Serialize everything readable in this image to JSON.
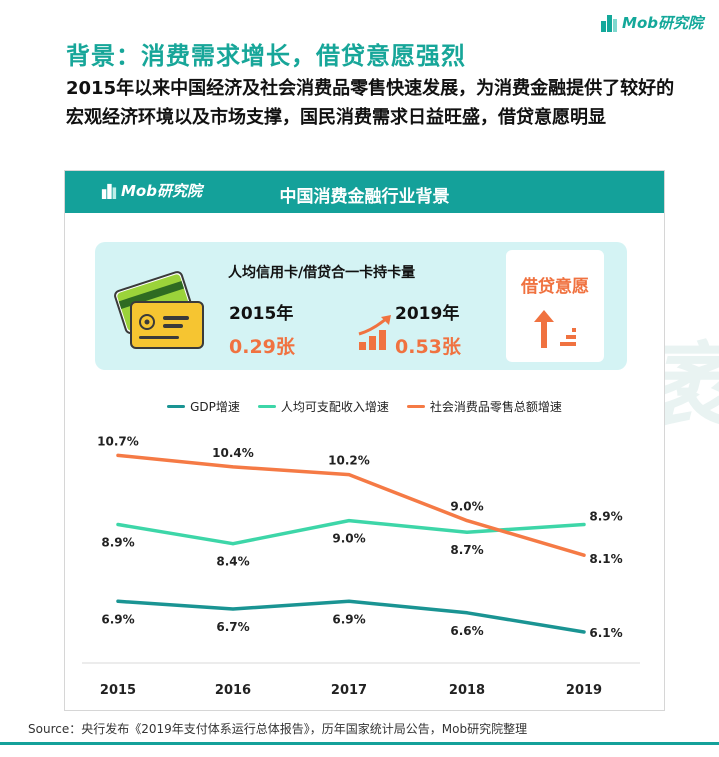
{
  "brand": {
    "name": "Mob研究院",
    "color": "#14a19a"
  },
  "page": {
    "title": "背景：消费需求增长，借贷意愿强烈",
    "subtitle": "2015年以来中国经济及社会消费品零售快速发展，为消费金融提供了较好的宏观经济环境以及市场支撑，国民消费需求日益旺盛，借贷意愿明显"
  },
  "card": {
    "header_logo": "Mob研究院",
    "header_title": "中国消费金融行业背景"
  },
  "card_stat": {
    "label": "人均信用卡/借贷合一卡持卡量",
    "year_a": "2015年",
    "value_a": "0.29张",
    "year_b": "2019年",
    "value_b": "0.53张",
    "side_label": "借贷意愿",
    "icons": [
      "credit-card-icon",
      "growth-icon",
      "arrow-up-icon"
    ]
  },
  "watermark": "Mobtech 袤博",
  "source": "Source：央行发布《2019年支付体系运行总体报告》，历年国家统计局公告，Mob研究院整理",
  "chart_data": {
    "type": "line",
    "categories": [
      "2015",
      "2016",
      "2017",
      "2018",
      "2019"
    ],
    "series": [
      {
        "name": "GDP增速",
        "color": "#1a9493",
        "values": [
          6.9,
          6.7,
          6.9,
          6.6,
          6.1
        ]
      },
      {
        "name": "人均可支配收入增速",
        "color": "#3dd6a8",
        "values": [
          8.9,
          8.4,
          9.0,
          8.7,
          8.9
        ]
      },
      {
        "name": "社会消费品零售总额增速",
        "color": "#f57a45",
        "values": [
          10.7,
          10.4,
          10.2,
          9.0,
          8.1
        ]
      }
    ],
    "data_labels": [
      [
        "6.9%",
        "6.7%",
        "6.9%",
        "6.6%",
        "6.1%"
      ],
      [
        "8.9%",
        "8.4%",
        "9.0%",
        "8.7%",
        "8.9%"
      ],
      [
        "10.7%",
        "10.4%",
        "10.2%",
        "9.0%",
        "8.1%"
      ]
    ],
    "legend_position": "top",
    "grid": false
  }
}
